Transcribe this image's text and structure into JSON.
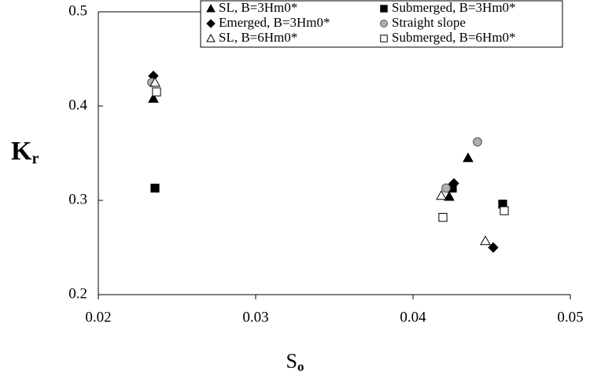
{
  "chart_data": {
    "type": "scatter",
    "xlabel": {
      "text": "S",
      "subscript": "o"
    },
    "ylabel": {
      "text": "K",
      "subscript": "r"
    },
    "xlim": [
      0.02,
      0.05
    ],
    "xticks": [
      0.02,
      0.03,
      0.04,
      0.05
    ],
    "ylim": [
      0.2,
      0.5
    ],
    "yticks": [
      0.2,
      0.3,
      0.4,
      0.5
    ],
    "legend": "top",
    "series": [
      {
        "name": "SL, B=3Hm0*",
        "marker": "triangle",
        "color": "#000000",
        "marker_fill": "#000000",
        "x": [
          0.0235,
          0.0423,
          0.0435
        ],
        "y": [
          0.408,
          0.304,
          0.345
        ]
      },
      {
        "name": "Submerged, B=3Hm0*",
        "marker": "square",
        "color": "#000000",
        "marker_fill": "#000000",
        "x": [
          0.0236,
          0.0425,
          0.0457
        ],
        "y": [
          0.313,
          0.313,
          0.296
        ]
      },
      {
        "name": "Emerged, B=3Hm0*",
        "marker": "diamond",
        "color": "#000000",
        "marker_fill": "#000000",
        "x": [
          0.0235,
          0.0426,
          0.0451
        ],
        "y": [
          0.432,
          0.318,
          0.25
        ]
      },
      {
        "name": "Straight slope",
        "marker": "circle",
        "color": "#555555",
        "marker_fill": "#b0b0b0",
        "x": [
          0.0234,
          0.0421,
          0.0441
        ],
        "y": [
          0.425,
          0.313,
          0.362
        ]
      },
      {
        "name": "SL, B=6Hm0*",
        "marker": "triangle",
        "color": "#000000",
        "marker_fill": "#ffffff",
        "x": [
          0.0236,
          0.0418,
          0.0446
        ],
        "y": [
          0.425,
          0.305,
          0.257
        ]
      },
      {
        "name": "Submerged, B=6Hm0*",
        "marker": "square",
        "color": "#000000",
        "marker_fill": "#ffffff",
        "x": [
          0.0237,
          0.0419,
          0.0458
        ],
        "y": [
          0.415,
          0.282,
          0.289
        ]
      }
    ]
  }
}
